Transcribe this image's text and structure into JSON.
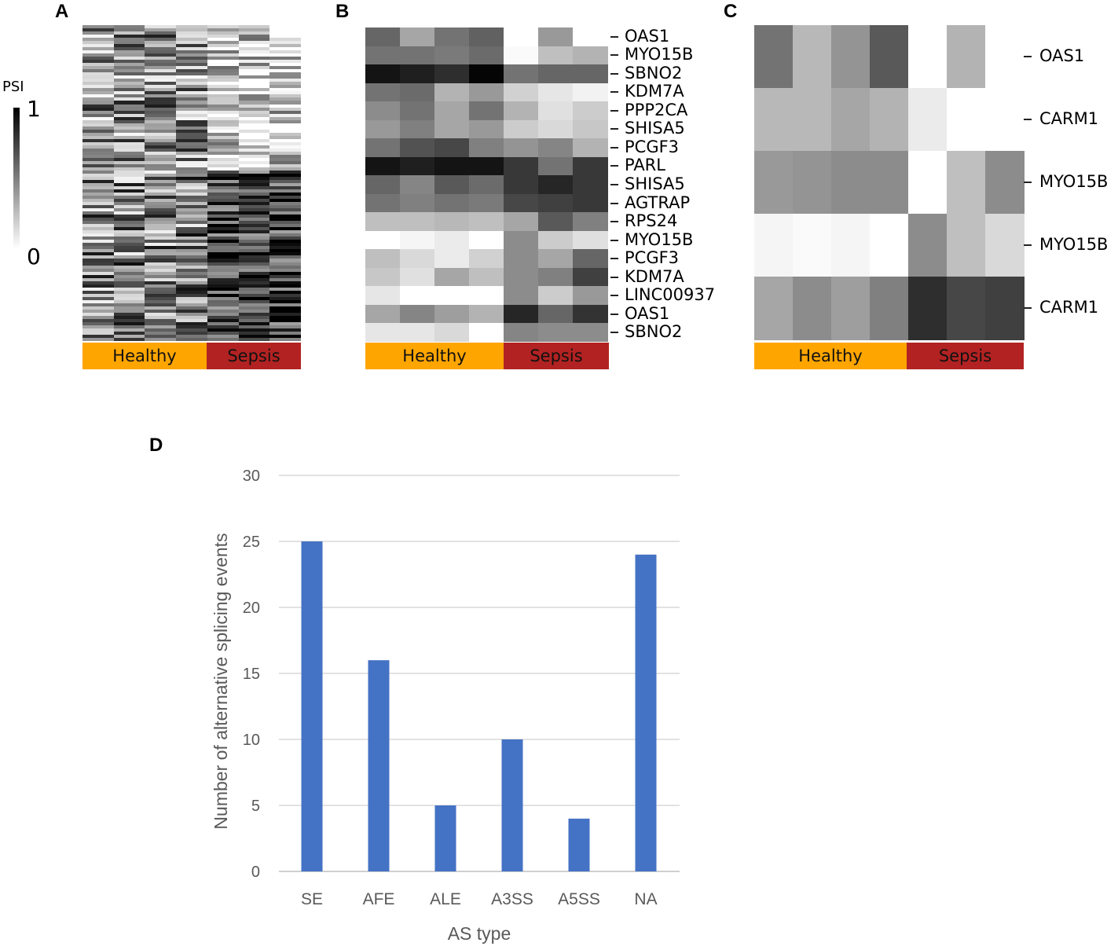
{
  "panels": {
    "a": "A",
    "b": "B",
    "c": "C",
    "d": "D"
  },
  "legend": {
    "title": "PSI",
    "max": "1",
    "min": "0"
  },
  "groups": {
    "healthy": "Healthy",
    "sepsis": "Sepsis"
  },
  "colors": {
    "healthy": "#ffa500",
    "sepsis": "#b22222",
    "bar": "#4472c4",
    "grid": "#d9d9d9",
    "axis_text": "#595959"
  },
  "heatmap_b": {
    "rows": [
      "OAS1",
      "MYO15B",
      "SBNO2",
      "KDM7A",
      "PPP2CA",
      "SHISA5",
      "PCGF3",
      "PARL",
      "SHISA5",
      "AGTRAP",
      "RPS24",
      "MYO15B",
      "PCGF3",
      "KDM7A",
      "LINC00937",
      "OAS1",
      "SBNO2"
    ],
    "values": [
      [
        0.6,
        0.35,
        0.55,
        0.62,
        0.0,
        0.4,
        0.0
      ],
      [
        0.55,
        0.55,
        0.52,
        0.58,
        0.02,
        0.25,
        0.3
      ],
      [
        0.92,
        0.88,
        0.82,
        0.98,
        0.55,
        0.6,
        0.6
      ],
      [
        0.55,
        0.58,
        0.3,
        0.4,
        0.18,
        0.1,
        0.05
      ],
      [
        0.45,
        0.55,
        0.35,
        0.55,
        0.3,
        0.12,
        0.2
      ],
      [
        0.4,
        0.5,
        0.35,
        0.4,
        0.2,
        0.15,
        0.22
      ],
      [
        0.55,
        0.68,
        0.72,
        0.5,
        0.42,
        0.48,
        0.3
      ],
      [
        0.92,
        0.88,
        0.92,
        0.92,
        0.78,
        0.55,
        0.78
      ],
      [
        0.6,
        0.48,
        0.65,
        0.58,
        0.78,
        0.85,
        0.78
      ],
      [
        0.55,
        0.5,
        0.55,
        0.52,
        0.72,
        0.75,
        0.78
      ],
      [
        0.25,
        0.25,
        0.28,
        0.25,
        0.35,
        0.65,
        0.5
      ],
      [
        0.0,
        0.04,
        0.08,
        0.0,
        0.45,
        0.2,
        0.12
      ],
      [
        0.25,
        0.15,
        0.08,
        0.18,
        0.45,
        0.35,
        0.6
      ],
      [
        0.22,
        0.12,
        0.35,
        0.25,
        0.45,
        0.5,
        0.75
      ],
      [
        0.1,
        0.0,
        0.0,
        0.0,
        0.45,
        0.2,
        0.4
      ],
      [
        0.35,
        0.48,
        0.38,
        0.3,
        0.85,
        0.6,
        0.8
      ],
      [
        0.1,
        0.1,
        0.15,
        0.0,
        0.48,
        0.45,
        0.45
      ]
    ]
  },
  "heatmap_c": {
    "rows": [
      "OAS1",
      "CARM1",
      "MYO15B",
      "MYO15B",
      "CARM1"
    ],
    "values": [
      [
        0.55,
        0.28,
        0.42,
        0.65,
        0.0,
        0.3,
        0.0
      ],
      [
        0.28,
        0.28,
        0.35,
        0.3,
        0.08,
        0.0,
        0.0
      ],
      [
        0.4,
        0.42,
        0.45,
        0.45,
        0.0,
        0.25,
        0.45
      ],
      [
        0.04,
        0.02,
        0.04,
        0.0,
        0.45,
        0.25,
        0.15
      ],
      [
        0.35,
        0.45,
        0.38,
        0.5,
        0.82,
        0.72,
        0.75
      ]
    ]
  },
  "chart_data": {
    "type": "bar",
    "title": "",
    "categories": [
      "SE",
      "AFE",
      "ALE",
      "A3SS",
      "A5SS",
      "NA"
    ],
    "values": [
      25,
      16,
      5,
      10,
      4,
      24
    ],
    "xlabel": "AS type",
    "ylabel": "Number of alternative splicing events",
    "ylim": [
      0,
      30
    ],
    "yticks": [
      "0",
      "5",
      "10",
      "15",
      "20",
      "25",
      "30"
    ],
    "grid": true
  }
}
